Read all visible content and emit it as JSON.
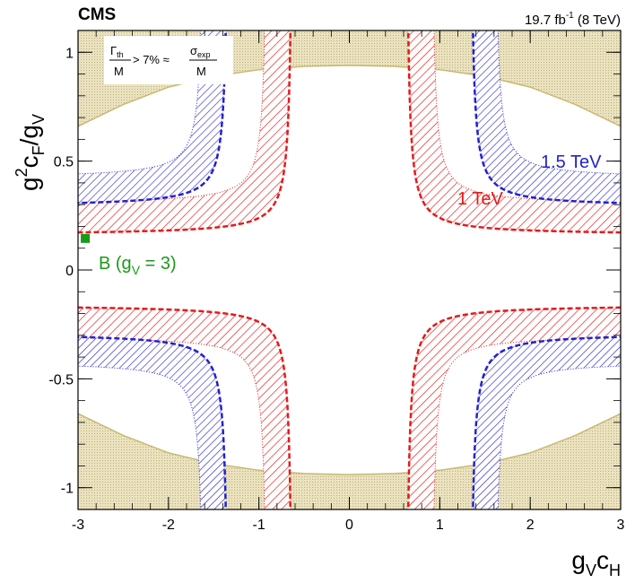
{
  "header": {
    "experiment": "CMS",
    "lumi_prefix": "19.7 fb",
    "lumi_sup": "-1",
    "lumi_suffix": " (8 TeV)"
  },
  "legend_box": {
    "gamma": "Γ",
    "gamma_sub": "th",
    "denom_left": "M",
    "middle": " > 7% ≈ ",
    "sigma": "σ",
    "sigma_sub": "exp",
    "denom_right": "M"
  },
  "annotations": {
    "label_15": "1.5 TeV",
    "label_1": "1 TeV",
    "point_b_prefix": "B (g",
    "point_b_sub": "V",
    "point_b_suffix": " = 3)"
  },
  "axes": {
    "x_main1": "g",
    "x_sub1": "V",
    "x_main2": "c",
    "x_sub2": "H",
    "y_main1": "g",
    "y_sup": "2",
    "y_main2": "c",
    "y_sub1": "F",
    "y_main3": "/g",
    "y_sub2": "V"
  },
  "colors": {
    "red": "#e31a1c",
    "blue": "#2222cc",
    "green": "#1a9a1a",
    "excluded_fill": "#e8dfb8",
    "excluded_line": "#c8b870"
  },
  "chart_data": {
    "type": "line",
    "xlim": [
      -3,
      3
    ],
    "ylim": [
      -1.1,
      1.1
    ],
    "x_ticks": [
      -3,
      -2,
      -1,
      0,
      1,
      2,
      3
    ],
    "y_ticks": [
      -1,
      -0.5,
      0,
      0.5,
      1
    ],
    "x_tick_labels": [
      "-3",
      "-2",
      "-1",
      "0",
      "1",
      "2",
      "3"
    ],
    "y_tick_labels": [
      "-1",
      "-0.5",
      "0",
      "0.5",
      "1"
    ],
    "series": [
      {
        "name": "1 TeV",
        "color": "#e31a1c",
        "band_inner": {
          "x0": 0.62,
          "y0": 0.16
        },
        "band_outer": {
          "x0": 0.9,
          "y0": 0.3
        }
      },
      {
        "name": "1.5 TeV",
        "color": "#2222cc",
        "band_inner": {
          "x0": 1.33,
          "y0": 0.29
        },
        "band_outer": {
          "x0": 1.6,
          "y0": 0.42
        }
      }
    ],
    "excluded_region_boundary": {
      "x": [
        -3.0,
        -2.5,
        -2.0,
        -1.5,
        -1.0,
        -0.5,
        0.0,
        0.5,
        1.0,
        1.5,
        2.0,
        2.5,
        3.0
      ],
      "y": [
        0.66,
        0.76,
        0.84,
        0.89,
        0.92,
        0.935,
        0.94,
        0.935,
        0.92,
        0.89,
        0.84,
        0.76,
        0.66
      ]
    },
    "points": [
      {
        "name": "B (gV = 3)",
        "x": -2.92,
        "y": 0.145,
        "color": "#1a9a1a"
      }
    ]
  }
}
